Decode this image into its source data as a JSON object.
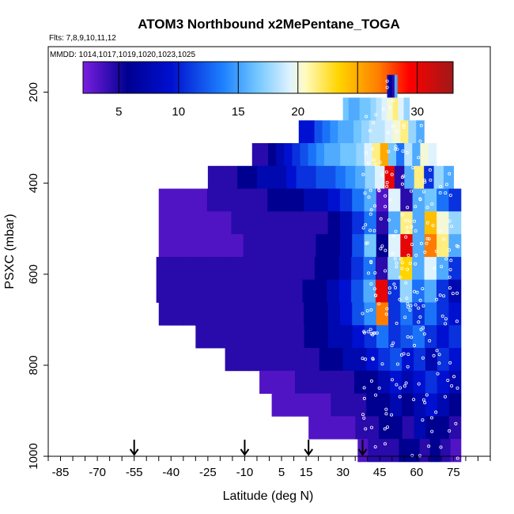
{
  "chart_data": {
    "type": "heatmap",
    "title": "ATOM3 Northbound x2MePentane_TOGA",
    "flights_label": "Flts: 7,8,9,10,11,12",
    "mmdd_label": "MMDD: 1014,1017,1019,1020,1023,1025",
    "xlabel": "Latitude (deg N)",
    "ylabel": "PSXC (mbar)",
    "xlim": [
      -90,
      90
    ],
    "ylim": [
      1000,
      100
    ],
    "x_ticks": [
      "-85",
      "-70",
      "-55",
      "-40",
      "-25",
      "-10",
      "5",
      "15",
      "30",
      "45",
      "60",
      "75"
    ],
    "y_ticks": [
      "200",
      "400",
      "600",
      "800",
      "1000"
    ],
    "colorbar": {
      "ticks": [
        "5",
        "10",
        "15",
        "20",
        "25",
        "30"
      ],
      "range": [
        2,
        33
      ]
    },
    "colors": {
      "purple": "#7a1ee0",
      "dark_blue": "#000090",
      "blue": "#0010d0",
      "sky": "#30a0ff",
      "pale": "#c8eaff",
      "yellow": "#ffe040",
      "orange": "#ff8000",
      "red": "#e00000",
      "dark_red": "#a01818"
    },
    "arrow_latitudes": [
      -55,
      -10,
      16,
      38
    ],
    "layers": [
      {
        "p": 187,
        "lat_min": 48,
        "lat_max": 52,
        "values": [
          6,
          5,
          4,
          12
        ]
      },
      {
        "p": 237,
        "lat_min": 30,
        "lat_max": 57,
        "values": [
          13,
          12,
          12,
          13,
          13,
          14,
          15,
          16,
          18,
          20,
          16,
          14
        ]
      },
      {
        "p": 287,
        "lat_min": 12,
        "lat_max": 63,
        "values": [
          7,
          7,
          9,
          10,
          11,
          12,
          12,
          13,
          14,
          15,
          15,
          16,
          18,
          20,
          14,
          12
        ]
      },
      {
        "p": 337,
        "lat_min": -7,
        "lat_max": 68,
        "values": [
          4,
          4,
          5,
          6,
          7,
          8,
          9,
          10,
          11,
          12,
          12,
          13,
          13,
          14,
          16,
          20,
          24,
          13,
          10,
          15,
          12,
          18,
          16
        ]
      },
      {
        "p": 387,
        "lat_min": -25,
        "lat_max": 75,
        "values": [
          4,
          4,
          4,
          5,
          5,
          6,
          6,
          6,
          7,
          8,
          8,
          9,
          9,
          10,
          11,
          12,
          14,
          16,
          30,
          4,
          12,
          20,
          8,
          14,
          12
        ]
      },
      {
        "p": 437,
        "lat_min": -45,
        "lat_max": 78,
        "values": [
          3,
          3,
          3,
          3,
          4,
          4,
          4,
          4,
          4,
          5,
          5,
          5,
          6,
          6,
          7,
          8,
          10,
          12,
          3,
          16,
          4,
          12,
          13,
          10,
          8
        ]
      },
      {
        "p": 487,
        "lat_min": -45,
        "lat_max": 78,
        "values": [
          3,
          3,
          3,
          3,
          3,
          3,
          4,
          4,
          4,
          4,
          4,
          4,
          4,
          4,
          5,
          6,
          8,
          10,
          4,
          12,
          20,
          12,
          23,
          18,
          14
        ]
      },
      {
        "p": 537,
        "lat_min": -45,
        "lat_max": 78,
        "values": [
          3,
          3,
          3,
          3,
          3,
          3,
          3,
          4,
          4,
          4,
          4,
          4,
          4,
          5,
          5,
          6,
          9,
          13,
          5,
          16,
          30,
          12,
          26,
          20,
          12
        ]
      },
      {
        "p": 587,
        "lat_min": -46,
        "lat_max": 78,
        "values": [
          4,
          4,
          4,
          4,
          4,
          4,
          4,
          4,
          4,
          4,
          4,
          4,
          4,
          5,
          5,
          6,
          8,
          10,
          4,
          14,
          22,
          12,
          16,
          12,
          8
        ]
      },
      {
        "p": 637,
        "lat_min": -46,
        "lat_max": 78,
        "values": [
          4,
          4,
          4,
          4,
          4,
          4,
          4,
          4,
          4,
          4,
          4,
          4,
          5,
          5,
          6,
          7,
          9,
          12,
          30,
          8,
          14,
          10,
          12,
          8,
          6
        ]
      },
      {
        "p": 687,
        "lat_min": -45,
        "lat_max": 78,
        "values": [
          4,
          4,
          4,
          4,
          4,
          4,
          4,
          4,
          4,
          4,
          4,
          4,
          5,
          5,
          6,
          7,
          9,
          11,
          26,
          8,
          10,
          8,
          10,
          8,
          7
        ]
      },
      {
        "p": 737,
        "lat_min": -30,
        "lat_max": 78,
        "values": [
          4,
          4,
          4,
          4,
          4,
          4,
          4,
          4,
          4,
          5,
          5,
          6,
          6,
          7,
          8,
          10,
          8,
          9,
          10,
          8,
          7,
          8
        ]
      },
      {
        "p": 787,
        "lat_min": -18,
        "lat_max": 78,
        "values": [
          4,
          4,
          4,
          4,
          4,
          4,
          4,
          4,
          5,
          5,
          6,
          6,
          7,
          8,
          9,
          7,
          8,
          6,
          8,
          7
        ]
      },
      {
        "p": 837,
        "lat_min": -4,
        "lat_max": 78,
        "values": [
          3,
          3,
          3,
          4,
          4,
          4,
          4,
          4,
          5,
          5,
          6,
          7,
          6,
          7,
          8,
          7,
          6
        ]
      },
      {
        "p": 887,
        "lat_min": 1,
        "lat_max": 78,
        "values": [
          3,
          3,
          3,
          3,
          3,
          4,
          4,
          4,
          5,
          5,
          6,
          5,
          6,
          7,
          6,
          5
        ]
      },
      {
        "p": 937,
        "lat_min": 16,
        "lat_max": 78,
        "values": [
          3,
          3,
          3,
          3,
          4,
          4,
          5,
          5,
          4,
          6,
          5,
          5,
          4
        ]
      },
      {
        "p": 987,
        "lat_min": 36,
        "lat_max": 78,
        "values": [
          3,
          4,
          4,
          4,
          5,
          5,
          4,
          5,
          4,
          3
        ]
      }
    ]
  }
}
